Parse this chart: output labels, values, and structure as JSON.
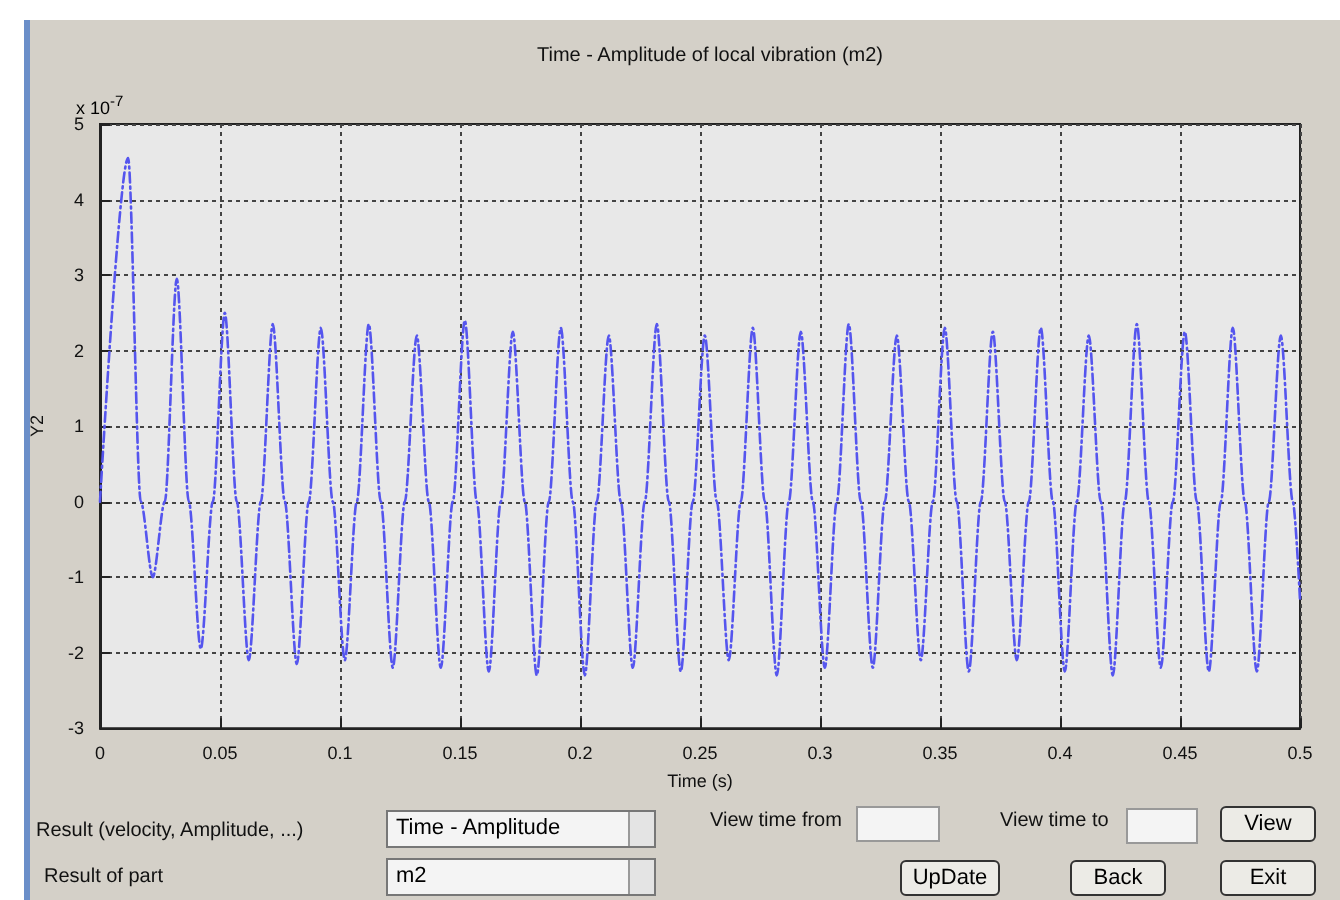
{
  "chart_data": {
    "type": "line",
    "title": "Time - Amplitude of local vibration (m2)",
    "xlabel": "Time (s)",
    "ylabel": "Y2",
    "annotations": [
      "x 10$^{-7}$",
      "Result (velocity, Amplitude, ...)",
      "Result of part",
      "Time - Amplitude",
      "m2",
      "View time from",
      "View time to",
      "View",
      "UpDate",
      "Back",
      "Exit"
    ],
    "x": [
      0,
      0.0117,
      0.017,
      0.022,
      0.027,
      0.032,
      0.037,
      0.042,
      0.047,
      0.052,
      0.057,
      0.062,
      0.067,
      0.072,
      0.077,
      0.082,
      0.087,
      0.092,
      0.097,
      0.102,
      0.107,
      0.112,
      0.117,
      0.122,
      0.127,
      0.132,
      0.137,
      0.142,
      0.147,
      0.152,
      0.157,
      0.162,
      0.167,
      0.172,
      0.177,
      0.182,
      0.187,
      0.192,
      0.197,
      0.202,
      0.207,
      0.212,
      0.217,
      0.222,
      0.227,
      0.232,
      0.237,
      0.242,
      0.247,
      0.252,
      0.257,
      0.262,
      0.267,
      0.272,
      0.277,
      0.282,
      0.287,
      0.292,
      0.297,
      0.302,
      0.307,
      0.312,
      0.317,
      0.322,
      0.327,
      0.332,
      0.337,
      0.342,
      0.347,
      0.352,
      0.357,
      0.362,
      0.367,
      0.372,
      0.377,
      0.382,
      0.387,
      0.392,
      0.397,
      0.402,
      0.407,
      0.412,
      0.417,
      0.422,
      0.427,
      0.432,
      0.437,
      0.442,
      0.447,
      0.452,
      0.457,
      0.462,
      0.467,
      0.472,
      0.477,
      0.482,
      0.487,
      0.492,
      0.497,
      0.5
    ],
    "series": [
      {
        "color": "#5555ee",
        "values": [
          0,
          4.55,
          0,
          -1.0,
          0,
          2.95,
          0,
          -1.95,
          0,
          2.5,
          0,
          -2.1,
          0,
          2.35,
          0,
          -2.15,
          0,
          2.3,
          0,
          -2.1,
          0,
          2.35,
          0,
          -2.2,
          0,
          2.2,
          0,
          -2.2,
          0,
          2.4,
          0,
          -2.25,
          0,
          2.25,
          0,
          -2.3,
          0,
          2.3,
          0,
          -2.3,
          0,
          2.2,
          0,
          -2.2,
          0,
          2.35,
          0,
          -2.25,
          0,
          2.2,
          0,
          -2.1,
          0,
          2.3,
          0,
          -2.3,
          0,
          2.25,
          0,
          -2.2,
          0,
          2.35,
          0,
          -2.2,
          0,
          2.2,
          0,
          -2.1,
          0,
          2.3,
          0,
          -2.25,
          0,
          2.25,
          0,
          -2.1,
          0,
          2.3,
          0,
          -2.25,
          0,
          2.2,
          0,
          -2.3,
          0,
          2.35,
          0,
          -2.2,
          0,
          2.25,
          0,
          -2.25,
          0,
          2.3,
          0,
          -2.25,
          0,
          2.2,
          0,
          -1.3
        ]
      }
    ],
    "xlim": [
      0,
      0.5
    ],
    "xticks": [
      0,
      0.05,
      0.1,
      0.15,
      0.2,
      0.25,
      0.3,
      0.35,
      0.4,
      0.45,
      0.5
    ],
    "ylim": [
      -3,
      5
    ],
    "yticks": [
      -3,
      -2,
      -1,
      0,
      1,
      2,
      3,
      4,
      5
    ],
    "grid": true,
    "marker": "none",
    "line_style": "dashed"
  }
}
